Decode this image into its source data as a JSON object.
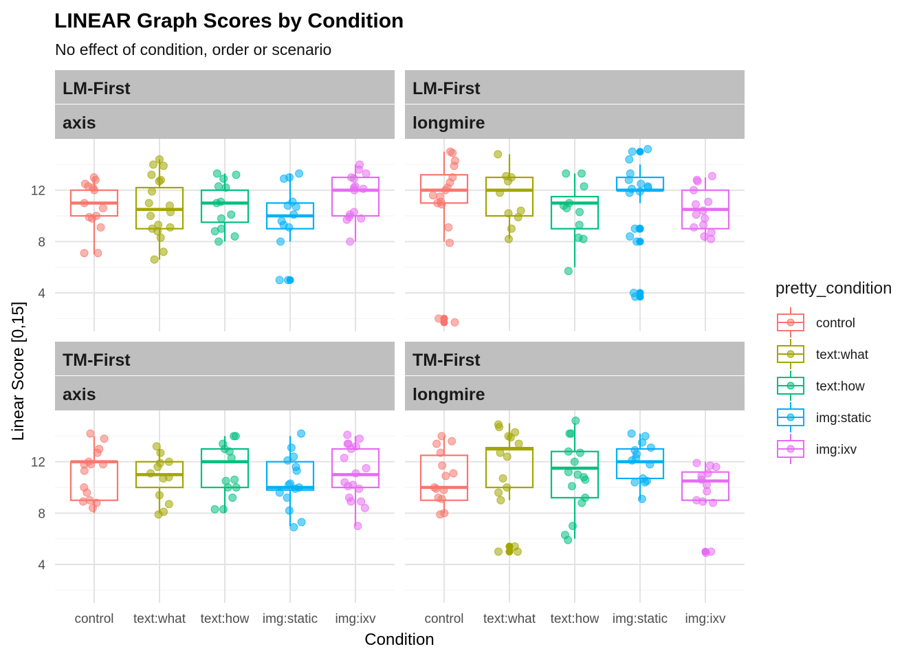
{
  "chart_data": {
    "type": "box",
    "title": "LINEAR Graph Scores by Condition",
    "subtitle": "No effect of condition, order or scenario",
    "xlabel": "Condition",
    "ylabel": "Linear Score [0,15]",
    "ylim": [
      1,
      16
    ],
    "yticks": [
      4,
      8,
      12
    ],
    "grid": true,
    "categories": [
      "control",
      "text:what",
      "text:how",
      "img:static",
      "img:ixv"
    ],
    "legend": {
      "title": "pretty_condition",
      "position": "right",
      "entries": [
        "control",
        "text:what",
        "text:how",
        "img:static",
        "img:ixv"
      ]
    },
    "colors": {
      "control": "#F8766D",
      "text:what": "#A3A500",
      "text:how": "#00BF7D",
      "img:static": "#00B0F6",
      "img:ixv": "#E76BF3"
    },
    "panels": [
      {
        "row": "LM-First",
        "col": "axis",
        "boxes": [
          {
            "q1": 10,
            "median": 11,
            "q3": 12,
            "whisker_low": 7,
            "whisker_high": 13,
            "outliers": [],
            "points": [
              13,
              12.8,
              12.5,
              12.3,
              12.2,
              12,
              11,
              10.6,
              10,
              9.8,
              9.9,
              9.1,
              7.1,
              7.1
            ]
          },
          {
            "q1": 9,
            "median": 10.5,
            "q3": 12.2,
            "whisker_low": 6.6,
            "whisker_high": 14.4,
            "outliers": [],
            "points": [
              14.4,
              14,
              13.9,
              13.2,
              12.8,
              12.7,
              11.9,
              11,
              10.8,
              10.3,
              10,
              9.3,
              9.1,
              9,
              8.8,
              8.3,
              7.2,
              6.6
            ]
          },
          {
            "q1": 9.5,
            "median": 11,
            "q3": 12,
            "whisker_low": 8,
            "whisker_high": 13.3,
            "outliers": [],
            "points": [
              13.3,
              13.2,
              12.9,
              12.3,
              12.2,
              11.1,
              11,
              10.1,
              9.8,
              9,
              8.8,
              8.4,
              8
            ]
          },
          {
            "q1": 9,
            "median": 10,
            "q3": 11,
            "whisker_low": 8,
            "whisker_high": 13.3,
            "outliers": [
              5
            ],
            "points": [
              13.3,
              13,
              12.9,
              11.1,
              10.8,
              10.7,
              10.1,
              9.6,
              9.3,
              9.1,
              8,
              5,
              5
            ]
          },
          {
            "q1": 10,
            "median": 12,
            "q3": 13,
            "whisker_low": 8,
            "whisker_high": 14,
            "outliers": [],
            "points": [
              14,
              13.6,
              13.3,
              13,
              12.9,
              12.3,
              12.2,
              12.1,
              12,
              10.3,
              10.1,
              9.9,
              9.8,
              9.7,
              8
            ]
          }
        ]
      },
      {
        "row": "LM-First",
        "col": "longmire",
        "boxes": [
          {
            "q1": 11,
            "median": 12,
            "q3": 13.2,
            "whisker_low": 8,
            "whisker_high": 15,
            "outliers": [
              2,
              1.7
            ],
            "points": [
              15,
              14.9,
              14.3,
              13.9,
              13,
              12.6,
              12.2,
              12,
              11.6,
              11.5,
              11.1,
              11,
              10.9,
              9.1,
              7.9,
              2,
              1.7
            ]
          },
          {
            "q1": 10,
            "median": 12,
            "q3": 13,
            "whisker_low": 8.2,
            "whisker_high": 14.8,
            "outliers": [],
            "points": [
              14.8,
              13.1,
              13,
              12.7,
              11.8,
              10.4,
              10.2,
              9.9,
              9,
              8.2
            ]
          },
          {
            "q1": 9,
            "median": 11,
            "q3": 11.5,
            "whisker_low": 6,
            "whisker_high": 13.3,
            "outliers": [],
            "points": [
              13.3,
              13.3,
              12.3,
              11,
              10.8,
              10.6,
              10.3,
              9.3,
              8.3,
              8.2,
              5.7
            ]
          },
          {
            "q1": 12,
            "median": 12,
            "q3": 13,
            "whisker_low": 11,
            "whisker_high": 14,
            "outliers": [
              15,
              9,
              8,
              4,
              3.7
            ],
            "points": [
              15.2,
              15,
              14.4,
              13.3,
              12.8,
              12.5,
              12.3,
              12.2,
              12.1,
              11.9,
              11.8,
              9,
              9,
              8.4,
              8,
              4,
              3.7
            ]
          },
          {
            "q1": 9,
            "median": 10.5,
            "q3": 12,
            "whisker_low": 8,
            "whisker_high": 13,
            "outliers": [],
            "points": [
              13.1,
              12.8,
              12.7,
              12,
              11.1,
              10.9,
              10.4,
              10.1,
              9.8,
              9.3,
              9.1,
              8.7,
              8.4,
              8.2
            ]
          }
        ]
      },
      {
        "row": "TM-First",
        "col": "axis",
        "boxes": [
          {
            "q1": 9,
            "median": 12,
            "q3": 12,
            "whisker_low": 8,
            "whisker_high": 14,
            "outliers": [],
            "points": [
              14.2,
              13.8,
              13,
              12.7,
              12,
              11.8,
              11.8,
              11.8,
              11.3,
              10,
              9.6,
              9,
              8.9,
              8.8,
              8.4
            ]
          },
          {
            "q1": 10,
            "median": 11,
            "q3": 12,
            "whisker_low": 8,
            "whisker_high": 13,
            "outliers": [],
            "points": [
              13.2,
              12.7,
              12,
              11.9,
              11.6,
              11.1,
              10.8,
              10.7,
              9.4,
              8.7,
              8.1,
              7.9
            ]
          },
          {
            "q1": 10,
            "median": 12,
            "q3": 13,
            "whisker_low": 8,
            "whisker_high": 14,
            "outliers": [],
            "points": [
              14,
              14,
              13.4,
              13,
              12.8,
              12.3,
              10.6,
              10.5,
              10,
              10,
              9.2,
              8.3,
              8.3
            ]
          },
          {
            "q1": 9.8,
            "median": 10,
            "q3": 12,
            "whisker_low": 7,
            "whisker_high": 14,
            "outliers": [],
            "points": [
              14.2,
              13.1,
              12.4,
              12.1,
              11.6,
              11.3,
              10.3,
              10.2,
              10,
              9.9,
              9.6,
              9.2,
              8.2,
              7.3,
              6.9
            ]
          },
          {
            "q1": 10,
            "median": 11,
            "q3": 13,
            "whisker_low": 7,
            "whisker_high": 14,
            "outliers": [],
            "points": [
              14.1,
              13.8,
              13.4,
              13.4,
              13.2,
              13,
              12.3,
              11.5,
              11.1,
              10.4,
              10.2,
              10.1,
              9.9,
              9.2,
              8.9,
              8.9,
              8.4,
              7
            ]
          }
        ]
      },
      {
        "row": "TM-First",
        "col": "longmire",
        "boxes": [
          {
            "q1": 9,
            "median": 10,
            "q3": 12.5,
            "whisker_low": 8,
            "whisker_high": 14,
            "outliers": [],
            "points": [
              14,
              13.6,
              13.4,
              12.7,
              11.7,
              11.1,
              10.9,
              10,
              9.9,
              9.8,
              9.2,
              9.1,
              8,
              7.9
            ]
          },
          {
            "q1": 10,
            "median": 13,
            "q3": 13.1,
            "whisker_low": 9,
            "whisker_high": 15,
            "outliers": [
              5,
              5.4
            ],
            "points": [
              14.9,
              14.7,
              14.3,
              14,
              13.9,
              13.4,
              12.7,
              12.4,
              10.7,
              10,
              9.6,
              9,
              5.4,
              5,
              5
            ]
          },
          {
            "q1": 9.2,
            "median": 11.5,
            "q3": 12.8,
            "whisker_low": 6,
            "whisker_high": 15,
            "outliers": [],
            "points": [
              15.2,
              14.2,
              14.2,
              12.8,
              12.7,
              12,
              11.2,
              11,
              10.8,
              10.6,
              10.1,
              9.2,
              8.8,
              7,
              6.3,
              5.9
            ]
          },
          {
            "q1": 10.7,
            "median": 12,
            "q3": 13,
            "whisker_low": 9,
            "whisker_high": 14.2,
            "outliers": [],
            "points": [
              14.2,
              14,
              13.5,
              13.1,
              12.9,
              12.6,
              12.3,
              12.1,
              11.8,
              10.7,
              10.5,
              10.4,
              10.4,
              9.1
            ]
          },
          {
            "q1": 9,
            "median": 10.5,
            "q3": 11.2,
            "whisker_low": 8.8,
            "whisker_high": 12,
            "outliers": [
              5
            ],
            "points": [
              11.9,
              11.7,
              11.6,
              11.1,
              10.9,
              10.6,
              10.2,
              9.7,
              9,
              8.9,
              8.8,
              5,
              4.9
            ]
          }
        ]
      }
    ]
  }
}
